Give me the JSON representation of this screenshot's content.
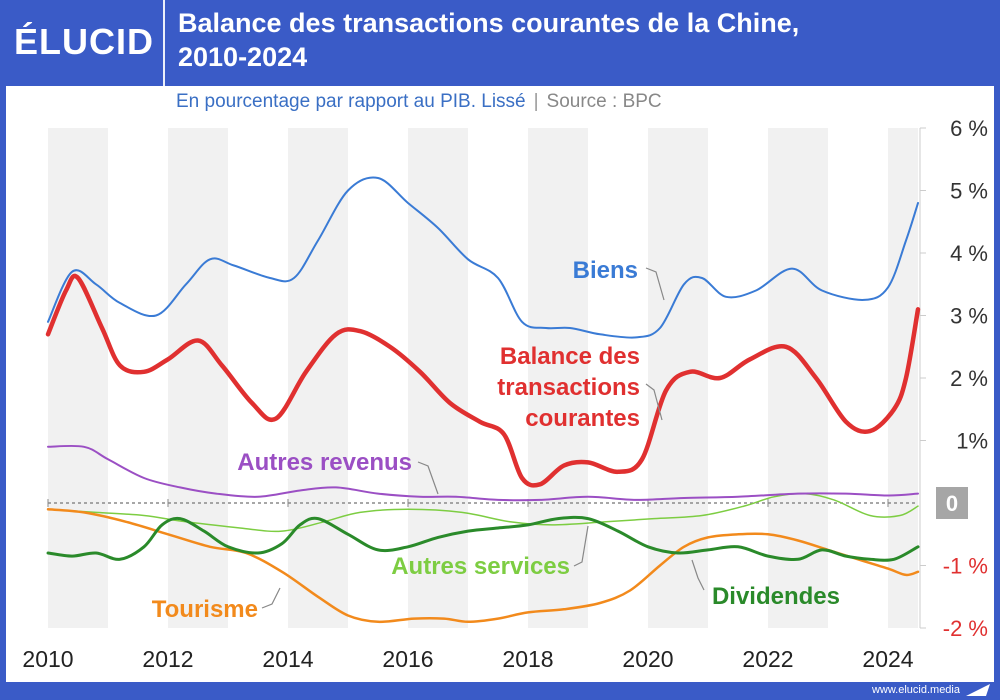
{
  "header": {
    "logo": "ÉLUCID",
    "title_line1": "Balance des transactions courantes de la Chine,",
    "title_line2": "2010-2024",
    "subtitle": "En pourcentage par rapport au PIB. Lissé",
    "separator": "|",
    "source": "Source : BPC"
  },
  "footer": {
    "url": "www.elucid.media"
  },
  "colors": {
    "frame": "#3a5bc7",
    "biens": "#3a7bd5",
    "balance": "#e03030",
    "autres_revenus": "#9b4fc4",
    "autres_services": "#7dcd42",
    "dividendes": "#2a8a2a",
    "tourisme": "#f28a1c",
    "negative_ticks": "#e03030",
    "zero_badge": "#a6a6a6"
  },
  "chart_data": {
    "type": "line",
    "title": "Balance des transactions courantes de la Chine, 2010-2024",
    "subtitle": "En pourcentage par rapport au PIB. Lissé",
    "source": "Source : BPC",
    "x_ticks": [
      "2010",
      "2012",
      "2014",
      "2016",
      "2018",
      "2020",
      "2022",
      "2024"
    ],
    "y_ticks": [
      "6 %",
      "5 %",
      "4 %",
      "3 %",
      "2 %",
      "1%",
      "0",
      "-1 %",
      "-2 %"
    ],
    "y_tick_values": [
      6,
      5,
      4,
      3,
      2,
      1,
      0,
      -1,
      -2
    ],
    "xlim": [
      2010,
      2024.5
    ],
    "ylim": [
      -2,
      6
    ],
    "grid": "alternating vertical bands every 2 years",
    "series": [
      {
        "name": "Biens",
        "label": "Biens",
        "color_key": "biens",
        "width": 2,
        "points": [
          [
            2010.0,
            2.9
          ],
          [
            2010.4,
            3.7
          ],
          [
            2010.8,
            3.5
          ],
          [
            2011.2,
            3.2
          ],
          [
            2011.8,
            3.0
          ],
          [
            2012.3,
            3.5
          ],
          [
            2012.7,
            3.9
          ],
          [
            2013.1,
            3.8
          ],
          [
            2013.7,
            3.6
          ],
          [
            2014.1,
            3.6
          ],
          [
            2014.5,
            4.2
          ],
          [
            2015.0,
            5.0
          ],
          [
            2015.5,
            5.2
          ],
          [
            2016.0,
            4.8
          ],
          [
            2016.5,
            4.4
          ],
          [
            2017.0,
            3.9
          ],
          [
            2017.5,
            3.6
          ],
          [
            2017.9,
            2.9
          ],
          [
            2018.3,
            2.8
          ],
          [
            2018.7,
            2.8
          ],
          [
            2019.2,
            2.7
          ],
          [
            2019.8,
            2.65
          ],
          [
            2020.2,
            2.8
          ],
          [
            2020.6,
            3.5
          ],
          [
            2020.9,
            3.6
          ],
          [
            2021.3,
            3.3
          ],
          [
            2021.8,
            3.4
          ],
          [
            2022.4,
            3.75
          ],
          [
            2022.9,
            3.4
          ],
          [
            2023.6,
            3.25
          ],
          [
            2024.0,
            3.45
          ],
          [
            2024.3,
            4.2
          ],
          [
            2024.5,
            4.8
          ]
        ]
      },
      {
        "name": "Balance des transactions courantes",
        "label": "Balance des transactions courantes",
        "color_key": "balance",
        "width": 4.5,
        "points": [
          [
            2010.0,
            2.7
          ],
          [
            2010.3,
            3.4
          ],
          [
            2010.5,
            3.6
          ],
          [
            2010.9,
            2.8
          ],
          [
            2011.2,
            2.2
          ],
          [
            2011.6,
            2.1
          ],
          [
            2012.0,
            2.3
          ],
          [
            2012.5,
            2.6
          ],
          [
            2012.9,
            2.2
          ],
          [
            2013.4,
            1.6
          ],
          [
            2013.8,
            1.35
          ],
          [
            2014.3,
            2.1
          ],
          [
            2014.8,
            2.7
          ],
          [
            2015.2,
            2.75
          ],
          [
            2015.7,
            2.5
          ],
          [
            2016.2,
            2.1
          ],
          [
            2016.7,
            1.6
          ],
          [
            2017.2,
            1.3
          ],
          [
            2017.6,
            1.1
          ],
          [
            2017.9,
            0.4
          ],
          [
            2018.2,
            0.3
          ],
          [
            2018.6,
            0.6
          ],
          [
            2019.0,
            0.65
          ],
          [
            2019.5,
            0.5
          ],
          [
            2019.9,
            0.7
          ],
          [
            2020.3,
            1.8
          ],
          [
            2020.7,
            2.1
          ],
          [
            2021.2,
            2.0
          ],
          [
            2021.7,
            2.3
          ],
          [
            2022.3,
            2.5
          ],
          [
            2022.8,
            2.0
          ],
          [
            2023.3,
            1.3
          ],
          [
            2023.7,
            1.15
          ],
          [
            2024.1,
            1.5
          ],
          [
            2024.3,
            2.0
          ],
          [
            2024.5,
            3.1
          ]
        ]
      },
      {
        "name": "Autres revenus",
        "label": "Autres revenus",
        "color_key": "autres_revenus",
        "width": 2,
        "points": [
          [
            2010.0,
            0.9
          ],
          [
            2010.6,
            0.9
          ],
          [
            2011.0,
            0.7
          ],
          [
            2011.6,
            0.4
          ],
          [
            2012.2,
            0.25
          ],
          [
            2012.8,
            0.15
          ],
          [
            2013.5,
            0.1
          ],
          [
            2014.2,
            0.2
          ],
          [
            2014.8,
            0.25
          ],
          [
            2015.5,
            0.15
          ],
          [
            2016.2,
            0.1
          ],
          [
            2016.8,
            0.1
          ],
          [
            2017.5,
            0.05
          ],
          [
            2018.2,
            0.05
          ],
          [
            2019.0,
            0.1
          ],
          [
            2019.8,
            0.05
          ],
          [
            2020.6,
            0.08
          ],
          [
            2021.5,
            0.1
          ],
          [
            2022.5,
            0.15
          ],
          [
            2023.3,
            0.15
          ],
          [
            2024.0,
            0.12
          ],
          [
            2024.5,
            0.15
          ]
        ]
      },
      {
        "name": "Autres services",
        "label": "Autres services",
        "color_key": "autres_services",
        "width": 1.5,
        "points": [
          [
            2010.0,
            -0.1
          ],
          [
            2010.8,
            -0.15
          ],
          [
            2011.6,
            -0.2
          ],
          [
            2012.3,
            -0.3
          ],
          [
            2013.2,
            -0.4
          ],
          [
            2013.9,
            -0.45
          ],
          [
            2014.6,
            -0.3
          ],
          [
            2015.2,
            -0.15
          ],
          [
            2016.0,
            -0.1
          ],
          [
            2016.9,
            -0.15
          ],
          [
            2017.7,
            -0.3
          ],
          [
            2018.4,
            -0.35
          ],
          [
            2019.3,
            -0.3
          ],
          [
            2020.1,
            -0.25
          ],
          [
            2020.9,
            -0.2
          ],
          [
            2021.6,
            -0.05
          ],
          [
            2022.1,
            0.1
          ],
          [
            2022.6,
            0.15
          ],
          [
            2023.1,
            0.05
          ],
          [
            2023.7,
            -0.2
          ],
          [
            2024.2,
            -0.2
          ],
          [
            2024.5,
            -0.05
          ]
        ]
      },
      {
        "name": "Dividendes",
        "label": "Dividendes",
        "color_key": "dividendes",
        "width": 3,
        "points": [
          [
            2010.0,
            -0.8
          ],
          [
            2010.4,
            -0.85
          ],
          [
            2010.8,
            -0.8
          ],
          [
            2011.2,
            -0.9
          ],
          [
            2011.6,
            -0.7
          ],
          [
            2011.9,
            -0.35
          ],
          [
            2012.2,
            -0.25
          ],
          [
            2012.6,
            -0.45
          ],
          [
            2013.0,
            -0.7
          ],
          [
            2013.5,
            -0.8
          ],
          [
            2013.9,
            -0.65
          ],
          [
            2014.2,
            -0.35
          ],
          [
            2014.5,
            -0.25
          ],
          [
            2015.0,
            -0.5
          ],
          [
            2015.5,
            -0.75
          ],
          [
            2016.0,
            -0.7
          ],
          [
            2016.5,
            -0.55
          ],
          [
            2017.0,
            -0.45
          ],
          [
            2017.5,
            -0.4
          ],
          [
            2018.0,
            -0.35
          ],
          [
            2018.5,
            -0.25
          ],
          [
            2019.0,
            -0.25
          ],
          [
            2019.5,
            -0.45
          ],
          [
            2020.0,
            -0.7
          ],
          [
            2020.5,
            -0.8
          ],
          [
            2021.0,
            -0.75
          ],
          [
            2021.5,
            -0.7
          ],
          [
            2022.0,
            -0.85
          ],
          [
            2022.5,
            -0.9
          ],
          [
            2022.9,
            -0.75
          ],
          [
            2023.3,
            -0.85
          ],
          [
            2023.7,
            -0.9
          ],
          [
            2024.1,
            -0.9
          ],
          [
            2024.5,
            -0.7
          ]
        ]
      },
      {
        "name": "Tourisme",
        "label": "Tourisme",
        "color_key": "tourisme",
        "width": 2.5,
        "points": [
          [
            2010.0,
            -0.1
          ],
          [
            2010.6,
            -0.15
          ],
          [
            2011.3,
            -0.3
          ],
          [
            2012.0,
            -0.5
          ],
          [
            2012.7,
            -0.7
          ],
          [
            2013.3,
            -0.8
          ],
          [
            2013.9,
            -1.1
          ],
          [
            2014.5,
            -1.5
          ],
          [
            2015.0,
            -1.8
          ],
          [
            2015.5,
            -1.9
          ],
          [
            2016.1,
            -1.85
          ],
          [
            2016.6,
            -1.85
          ],
          [
            2017.0,
            -1.9
          ],
          [
            2017.5,
            -1.85
          ],
          [
            2018.0,
            -1.75
          ],
          [
            2018.6,
            -1.7
          ],
          [
            2019.2,
            -1.6
          ],
          [
            2019.7,
            -1.4
          ],
          [
            2020.2,
            -1.0
          ],
          [
            2020.6,
            -0.7
          ],
          [
            2021.0,
            -0.55
          ],
          [
            2021.5,
            -0.5
          ],
          [
            2022.0,
            -0.5
          ],
          [
            2022.5,
            -0.6
          ],
          [
            2023.0,
            -0.75
          ],
          [
            2023.5,
            -0.9
          ],
          [
            2024.0,
            -1.05
          ],
          [
            2024.3,
            -1.15
          ],
          [
            2024.5,
            -1.1
          ]
        ]
      }
    ]
  }
}
